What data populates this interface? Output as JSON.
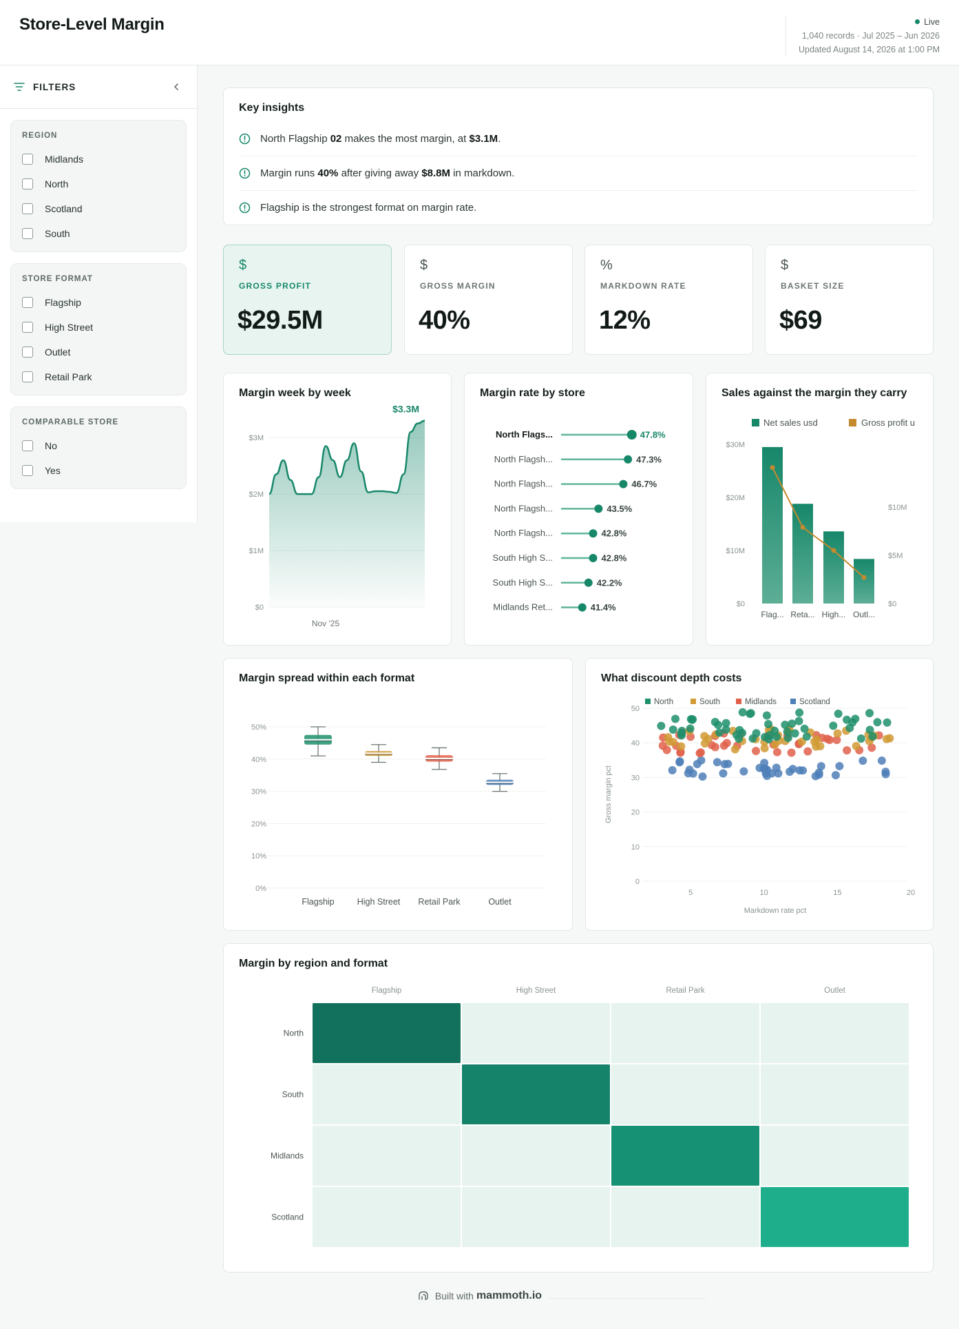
{
  "header": {
    "title": "Store-Level Margin",
    "live": "Live",
    "records": "1,040 records · Jul 2025 – Jun 2026",
    "updated": "Updated August 14, 2026 at 1:00 PM"
  },
  "filters": {
    "title": "FILTERS",
    "groups": [
      {
        "title": "REGION",
        "options": [
          "Midlands",
          "North",
          "Scotland",
          "South"
        ]
      },
      {
        "title": "STORE FORMAT",
        "options": [
          "Flagship",
          "High Street",
          "Outlet",
          "Retail Park"
        ]
      },
      {
        "title": "COMPARABLE STORE",
        "options": [
          "No",
          "Yes"
        ]
      }
    ]
  },
  "insights": {
    "title": "Key insights",
    "items": [
      {
        "pre": "North Flagship ",
        "b1": "02",
        "mid": " makes the most margin, at ",
        "b2": "$3.1M",
        "post": "."
      },
      {
        "pre": "Margin runs ",
        "b1": "40%",
        "mid": " after giving away ",
        "b2": "$8.8M",
        "post": " in markdown."
      },
      {
        "pre": "Flagship is the strongest format on margin rate.",
        "b1": "",
        "mid": "",
        "b2": "",
        "post": ""
      }
    ]
  },
  "kpis": [
    {
      "icon": "$",
      "label": "GROSS PROFIT",
      "value": "$29.5M",
      "icon_name": "dollar-icon"
    },
    {
      "icon": "$",
      "label": "GROSS MARGIN",
      "value": "40%",
      "icon_name": "dollar-icon"
    },
    {
      "icon": "%",
      "label": "MARKDOWN RATE",
      "value": "12%",
      "icon_name": "percent-icon"
    },
    {
      "icon": "$",
      "label": "BASKET SIZE",
      "value": "$69",
      "icon_name": "dollar-icon"
    }
  ],
  "colors": {
    "accent": "#17876a",
    "north": "#1f8f6c",
    "south": "#d19a34",
    "midlands": "#e0604b",
    "scotland": "#4f7fb8"
  },
  "chart_data": [
    {
      "id": "weekly",
      "type": "area",
      "title": "Margin week by week",
      "x_tick_labels": [
        "Nov '25"
      ],
      "y_tick_labels": [
        "$0",
        "$1M",
        "$2M",
        "$3M"
      ],
      "ylim": [
        0,
        3.6
      ],
      "values": [
        2.0,
        2.35,
        2.6,
        2.25,
        2.0,
        2.0,
        2.0,
        2.3,
        2.85,
        2.6,
        2.3,
        2.6,
        2.9,
        2.4,
        2.03,
        2.05,
        2.05,
        2.04,
        2.02,
        2.35,
        3.1,
        3.25,
        3.3
      ],
      "end_label": "$3.3M"
    },
    {
      "id": "store_rate",
      "type": "lollipop",
      "title": "Margin rate by store",
      "xlim": [
        0,
        50
      ],
      "stores": [
        "North Flags...",
        "North Flagsh...",
        "North Flagsh...",
        "North Flagsh...",
        "North Flagsh...",
        "South High S...",
        "South High S...",
        "Midlands Ret..."
      ],
      "values": [
        47.8,
        47.3,
        46.7,
        43.5,
        42.8,
        42.8,
        42.2,
        41.4
      ],
      "labels": [
        "47.8%",
        "47.3%",
        "46.7%",
        "43.5%",
        "42.8%",
        "42.8%",
        "42.2%",
        "41.4%"
      ]
    },
    {
      "id": "sales_margin",
      "type": "bar",
      "title": "Sales against the margin they carry",
      "legend": [
        "Net sales usd",
        "Gross profit u"
      ],
      "categories": [
        "Flag...",
        "Reta...",
        "High...",
        "Outl..."
      ],
      "series": [
        {
          "name": "Net sales usd",
          "values": [
            29.5,
            18.8,
            13.6,
            8.4
          ],
          "axis": "left"
        },
        {
          "name": "Gross profit u",
          "values": [
            14.1,
            7.9,
            5.5,
            2.7
          ],
          "axis": "right"
        }
      ],
      "left_ticks": [
        "$0",
        "$10M",
        "$20M",
        "$30M"
      ],
      "left_lim": [
        0,
        30
      ],
      "right_ticks": [
        "$0",
        "$5M",
        "$10M"
      ],
      "right_lim": [
        0,
        16.5
      ]
    },
    {
      "id": "spread",
      "type": "box",
      "title": "Margin spread within each format",
      "categories": [
        "Flagship",
        "High Street",
        "Retail Park",
        "Outlet"
      ],
      "y_tick_labels": [
        "0%",
        "10%",
        "20%",
        "30%",
        "40%",
        "50%"
      ],
      "ylim": [
        0,
        50
      ],
      "boxes": [
        {
          "min": 41,
          "q1": 44.5,
          "median": 46,
          "q3": 47.5,
          "max": 50
        },
        {
          "min": 39,
          "q1": 41,
          "median": 41.8,
          "q3": 42.5,
          "max": 44.5
        },
        {
          "min": 36.8,
          "q1": 39.2,
          "median": 40.2,
          "q3": 41.2,
          "max": 43.5
        },
        {
          "min": 30,
          "q1": 32,
          "median": 32.8,
          "q3": 33.6,
          "max": 35.5
        }
      ],
      "colors": [
        "#1f8f6c",
        "#d19a34",
        "#e0604b",
        "#4f7fb8"
      ]
    },
    {
      "id": "discount",
      "type": "scatter",
      "title": "What discount depth costs",
      "xlabel": "Markdown rate pct",
      "ylabel": "Gross margin pct",
      "x_ticks": [
        5,
        10,
        15,
        20
      ],
      "y_ticks": [
        0,
        10,
        20,
        30,
        40,
        50
      ],
      "xlim": [
        2,
        20
      ],
      "ylim": [
        0,
        50
      ],
      "legend": [
        "North",
        "South",
        "Midlands",
        "Scotland"
      ],
      "bands": [
        {
          "name": "North",
          "y_range": [
            41,
            49
          ]
        },
        {
          "name": "South",
          "y_range": [
            38,
            44
          ]
        },
        {
          "name": "Midlands",
          "y_range": [
            37,
            43
          ]
        },
        {
          "name": "Scotland",
          "y_range": [
            30,
            35
          ]
        }
      ],
      "x_range": [
        3,
        19
      ]
    },
    {
      "id": "heatmap",
      "type": "heatmap",
      "title": "Margin by region and format",
      "columns": [
        "Flagship",
        "High Street",
        "Retail Park",
        "Outlet"
      ],
      "rows": [
        "North",
        "South",
        "Midlands",
        "Scotland"
      ],
      "cells": [
        [
          "#12715c",
          "#e6f3ee",
          "#e6f3ee",
          "#e6f3ee"
        ],
        [
          "#e6f3ee",
          "#14836a",
          "#e6f3ee",
          "#e6f3ee"
        ],
        [
          "#e6f3ee",
          "#e6f3ee",
          "#179173",
          "#e6f3ee"
        ],
        [
          "#e6f3ee",
          "#e6f3ee",
          "#e6f3ee",
          "#1fae8b"
        ]
      ]
    }
  ],
  "footer": {
    "text": "Built with",
    "brand": "mammoth.io"
  }
}
